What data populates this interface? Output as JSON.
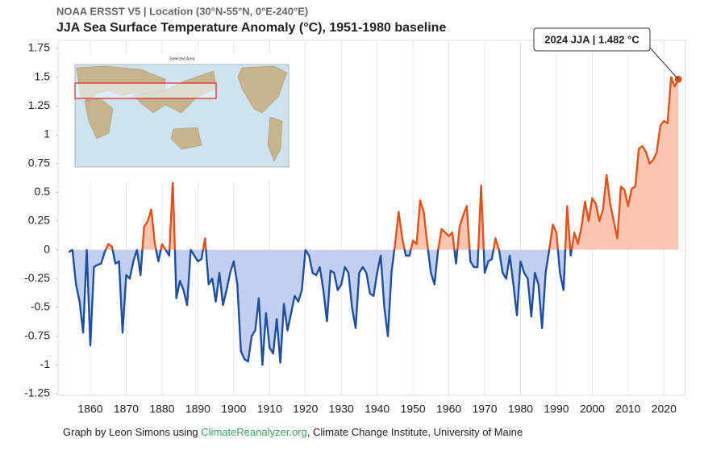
{
  "chart_data": {
    "type": "line",
    "subtitle": "NOAA ERSST V5 | Location (30°N-55°N, 0°E-240°E)",
    "title": "JJA Sea Surface Temperature Anomaly (°C), 1951-1980 baseline",
    "annotation": "2024 JJA | 1.482 °C",
    "footer": {
      "prefix": "Graph by Leon Simons using",
      "link": "ClimateReanalyzer.org",
      "suffix": ", Climate Change Institute, University of Maine"
    },
    "inset_title": "Selected Area",
    "x": [
      1854,
      1855,
      1856,
      1857,
      1858,
      1859,
      1860,
      1861,
      1862,
      1863,
      1864,
      1865,
      1866,
      1867,
      1868,
      1869,
      1870,
      1871,
      1872,
      1873,
      1874,
      1875,
      1876,
      1877,
      1878,
      1879,
      1880,
      1881,
      1882,
      1883,
      1884,
      1885,
      1886,
      1887,
      1888,
      1889,
      1890,
      1891,
      1892,
      1893,
      1894,
      1895,
      1896,
      1897,
      1898,
      1899,
      1900,
      1901,
      1902,
      1903,
      1904,
      1905,
      1906,
      1907,
      1908,
      1909,
      1910,
      1911,
      1912,
      1913,
      1914,
      1915,
      1916,
      1917,
      1918,
      1919,
      1920,
      1921,
      1922,
      1923,
      1924,
      1925,
      1926,
      1927,
      1928,
      1929,
      1930,
      1931,
      1932,
      1933,
      1934,
      1935,
      1936,
      1937,
      1938,
      1939,
      1940,
      1941,
      1942,
      1943,
      1944,
      1945,
      1946,
      1947,
      1948,
      1949,
      1950,
      1951,
      1952,
      1953,
      1954,
      1955,
      1956,
      1957,
      1958,
      1959,
      1960,
      1961,
      1962,
      1963,
      1964,
      1965,
      1966,
      1967,
      1968,
      1969,
      1970,
      1971,
      1972,
      1973,
      1974,
      1975,
      1976,
      1977,
      1978,
      1979,
      1980,
      1981,
      1982,
      1983,
      1984,
      1985,
      1986,
      1987,
      1988,
      1989,
      1990,
      1991,
      1992,
      1993,
      1994,
      1995,
      1996,
      1997,
      1998,
      1999,
      2000,
      2001,
      2002,
      2003,
      2004,
      2005,
      2006,
      2007,
      2008,
      2009,
      2010,
      2011,
      2012,
      2013,
      2014,
      2015,
      2016,
      2017,
      2018,
      2019,
      2020,
      2021,
      2022,
      2023,
      2024
    ],
    "values": [
      -0.02,
      0.0,
      -0.3,
      -0.45,
      -0.72,
      0.0,
      -0.83,
      -0.15,
      -0.13,
      -0.12,
      -0.02,
      0.05,
      0.03,
      -0.12,
      -0.1,
      -0.72,
      -0.22,
      -0.25,
      -0.1,
      0.0,
      -0.22,
      0.2,
      0.25,
      0.35,
      0.05,
      -0.1,
      0.05,
      0.0,
      -0.05,
      0.6,
      -0.42,
      -0.27,
      -0.35,
      -0.48,
      0.0,
      -0.05,
      -0.1,
      -0.08,
      0.1,
      -0.3,
      -0.25,
      -0.45,
      -0.2,
      -0.48,
      -0.35,
      -0.2,
      -0.1,
      -0.3,
      -0.88,
      -0.95,
      -0.97,
      -0.75,
      -0.7,
      -0.42,
      -1.0,
      -0.55,
      -0.85,
      -0.9,
      -0.6,
      -0.98,
      -0.47,
      -0.7,
      -0.55,
      -0.4,
      -0.45,
      -0.35,
      0.0,
      -0.05,
      -0.2,
      -0.22,
      -0.15,
      -0.35,
      -0.62,
      -0.18,
      -0.2,
      -0.35,
      -0.3,
      -0.15,
      -0.2,
      -0.5,
      -0.68,
      -0.2,
      -0.15,
      -0.2,
      -0.38,
      -0.4,
      -0.2,
      -0.05,
      -0.5,
      -0.75,
      -0.2,
      0.05,
      0.33,
      0.1,
      -0.05,
      -0.05,
      0.08,
      0.05,
      0.43,
      0.33,
      0.05,
      -0.2,
      -0.3,
      0.0,
      0.18,
      0.15,
      0.12,
      0.15,
      -0.12,
      0.2,
      0.3,
      0.38,
      -0.1,
      -0.15,
      -0.15,
      0.56,
      -0.2,
      -0.1,
      -0.08,
      0.1,
      0.0,
      -0.2,
      -0.25,
      -0.05,
      -0.3,
      -0.57,
      -0.1,
      -0.2,
      -0.25,
      -0.58,
      -0.2,
      -0.3,
      -0.68,
      -0.2,
      0.0,
      0.22,
      0.15,
      -0.2,
      -0.35,
      0.38,
      -0.05,
      0.15,
      0.05,
      0.2,
      0.42,
      0.25,
      0.45,
      0.4,
      0.25,
      0.35,
      0.65,
      0.4,
      0.25,
      0.1,
      0.55,
      0.52,
      0.38,
      0.53,
      0.55,
      0.88,
      0.9,
      0.85,
      0.75,
      0.78,
      0.85,
      1.08,
      1.12,
      1.1,
      1.5,
      1.42,
      1.482
    ],
    "color_positive": "#e0521c",
    "color_negative": "#1f4e9e",
    "fill_positive": "#f9c4b2",
    "fill_negative": "#c3cfee",
    "xlim": [
      1851,
      2026
    ],
    "xticks": [
      1860,
      1870,
      1880,
      1890,
      1900,
      1910,
      1920,
      1930,
      1940,
      1950,
      1960,
      1970,
      1980,
      1990,
      2000,
      2010,
      2020
    ],
    "ylim": [
      -1.25,
      1.75
    ],
    "yticks": [
      1.75,
      1.5,
      1.25,
      1,
      0.75,
      0.5,
      0.25,
      0,
      -0.25,
      -0.5,
      -0.75,
      -1,
      -1.25
    ],
    "grid": "x"
  }
}
